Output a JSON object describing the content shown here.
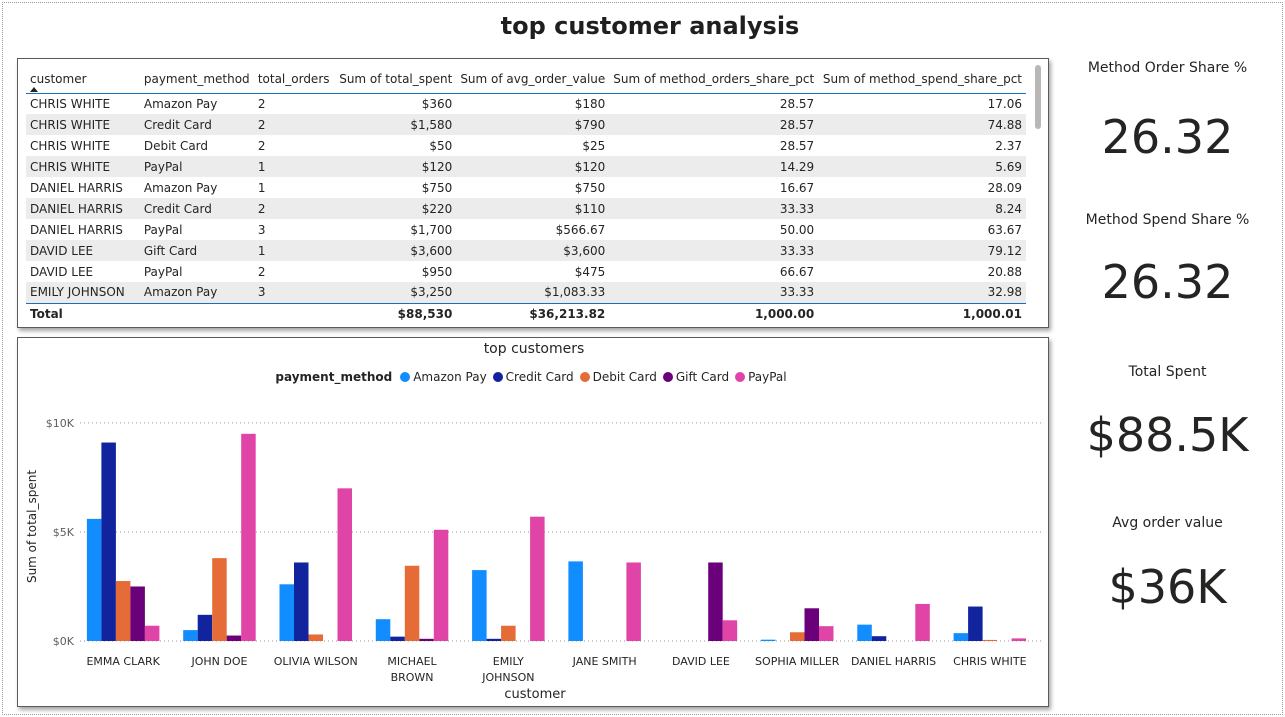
{
  "page_title": "top customer analysis",
  "table": {
    "columns": [
      "customer",
      "payment_method",
      "total_orders",
      "Sum of total_spent",
      "Sum of avg_order_value",
      "Sum of method_orders_share_pct",
      "Sum of method_spend_share_pct"
    ],
    "rows": [
      [
        "CHRIS WHITE",
        "Amazon Pay",
        "2",
        "$360",
        "$180",
        "28.57",
        "17.06"
      ],
      [
        "CHRIS WHITE",
        "Credit Card",
        "2",
        "$1,580",
        "$790",
        "28.57",
        "74.88"
      ],
      [
        "CHRIS WHITE",
        "Debit Card",
        "2",
        "$50",
        "$25",
        "28.57",
        "2.37"
      ],
      [
        "CHRIS WHITE",
        "PayPal",
        "1",
        "$120",
        "$120",
        "14.29",
        "5.69"
      ],
      [
        "DANIEL HARRIS",
        "Amazon Pay",
        "1",
        "$750",
        "$750",
        "16.67",
        "28.09"
      ],
      [
        "DANIEL HARRIS",
        "Credit Card",
        "2",
        "$220",
        "$110",
        "33.33",
        "8.24"
      ],
      [
        "DANIEL HARRIS",
        "PayPal",
        "3",
        "$1,700",
        "$566.67",
        "50.00",
        "63.67"
      ],
      [
        "DAVID LEE",
        "Gift Card",
        "1",
        "$3,600",
        "$3,600",
        "33.33",
        "79.12"
      ],
      [
        "DAVID LEE",
        "PayPal",
        "2",
        "$950",
        "$475",
        "66.67",
        "20.88"
      ],
      [
        "EMILY JOHNSON",
        "Amazon Pay",
        "3",
        "$3,250",
        "$1,083.33",
        "33.33",
        "32.98"
      ]
    ],
    "total": [
      "Total",
      "",
      "",
      "$88,530",
      "$36,213.82",
      "1,000.00",
      "1,000.01"
    ]
  },
  "kpis": [
    {
      "label": "Method Order Share %",
      "value": "26.32"
    },
    {
      "label": "Method Spend Share %",
      "value": "26.32"
    },
    {
      "label": "Total Spent",
      "value": "$88.5K"
    },
    {
      "label": "Avg order value",
      "value": "$36K"
    }
  ],
  "chart_data": {
    "type": "bar",
    "title": "top customers",
    "xlabel": "customer",
    "ylabel": "Sum of total_spent",
    "legend_title": "payment_method",
    "legend_position": "top-center",
    "ylim": [
      0,
      10500
    ],
    "yticks": [
      0,
      5000,
      10000
    ],
    "ytick_labels": [
      "$0K",
      "$5K",
      "$10K"
    ],
    "grid": true,
    "categories": [
      "EMMA CLARK",
      "JOHN DOE",
      "OLIVIA WILSON",
      "MICHAEL BROWN",
      "EMILY JOHNSON",
      "JANE SMITH",
      "DAVID LEE",
      "SOPHIA MILLER",
      "DANIEL HARRIS",
      "CHRIS WHITE"
    ],
    "category_label_lines": [
      [
        "EMMA CLARK"
      ],
      [
        "JOHN DOE"
      ],
      [
        "OLIVIA WILSON"
      ],
      [
        "MICHAEL",
        "BROWN"
      ],
      [
        "EMILY",
        "JOHNSON"
      ],
      [
        "JANE SMITH"
      ],
      [
        "DAVID LEE"
      ],
      [
        "SOPHIA MILLER"
      ],
      [
        "DANIEL HARRIS"
      ],
      [
        "CHRIS WHITE"
      ]
    ],
    "series": [
      {
        "name": "Amazon Pay",
        "color": "#118DFF",
        "values": [
          5600,
          500,
          2600,
          1000,
          3250,
          3650,
          0,
          60,
          750,
          360
        ]
      },
      {
        "name": "Credit Card",
        "color": "#12239E",
        "values": [
          9100,
          1200,
          3600,
          200,
          100,
          0,
          0,
          0,
          220,
          1580
        ]
      },
      {
        "name": "Debit Card",
        "color": "#E66C37",
        "values": [
          2750,
          3800,
          300,
          3450,
          700,
          0,
          0,
          400,
          0,
          50
        ]
      },
      {
        "name": "Gift Card",
        "color": "#6B007B",
        "values": [
          2500,
          250,
          0,
          100,
          0,
          0,
          3600,
          1500,
          0,
          0
        ]
      },
      {
        "name": "PayPal",
        "color": "#E044A7",
        "values": [
          700,
          9500,
          7000,
          5100,
          5700,
          3600,
          950,
          680,
          1700,
          120
        ]
      }
    ]
  }
}
